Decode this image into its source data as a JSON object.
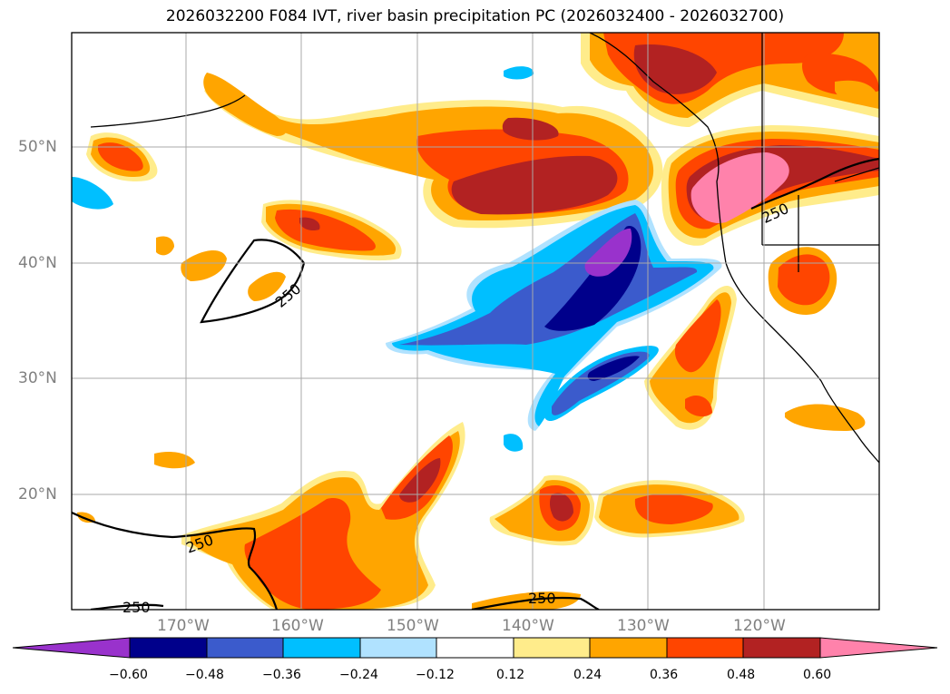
{
  "title": "2026032200 F084 IVT, river basin precipitation PC (2026032400 - 2026032700)",
  "map": {
    "lat_labels": [
      "50°N",
      "40°N",
      "30°N",
      "20°N"
    ],
    "lon_labels": [
      "170°W",
      "160°W",
      "150°W",
      "140°W",
      "130°W",
      "120°W"
    ],
    "contour_label": "250"
  },
  "colorbar": {
    "ticks": [
      "−0.60",
      "−0.48",
      "−0.36",
      "−0.24",
      "−0.12",
      "0.12",
      "0.24",
      "0.36",
      "0.48",
      "0.60"
    ],
    "colors": [
      "#9932cc",
      "#00008b",
      "#3b5bcc",
      "#00bfff",
      "#b0e2ff",
      "#ffffff",
      "#ffec8b",
      "#ffa500",
      "#ff4500",
      "#b22222",
      "#ff82ab"
    ]
  }
}
